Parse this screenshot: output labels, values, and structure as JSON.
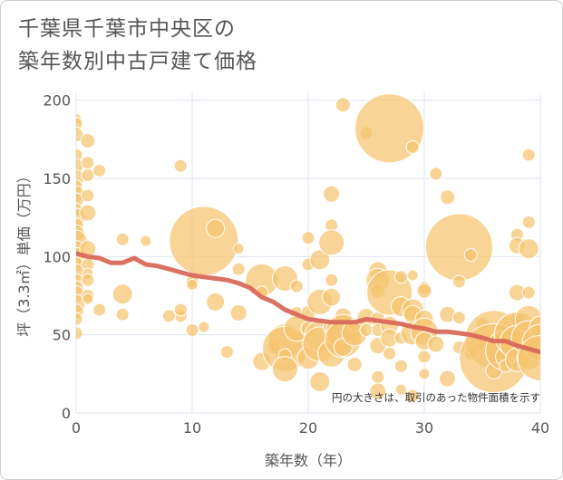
{
  "chart_data": {
    "type": "scatter",
    "title": [
      "千葉県千葉市中央区の",
      "築年数別中古戸建て価格"
    ],
    "xlabel": "築年数（年）",
    "ylabel": "坪（3.3㎡）単価（万円）",
    "xlim": [
      0,
      40
    ],
    "ylim": [
      0,
      205
    ],
    "xticks": [
      0,
      10,
      20,
      30,
      40
    ],
    "yticks": [
      0,
      50,
      100,
      150,
      200
    ],
    "annotation": "円の大きさは、取引のあった物件面積を示す",
    "colors": {
      "bubble_fill": "#f5c36e",
      "bubble_stroke": "#ffffff",
      "trend_line": "#d9695a",
      "grid": "#dde3ee",
      "axis_text": "#555555"
    },
    "trend": [
      [
        0,
        102
      ],
      [
        1,
        100
      ],
      [
        2,
        99
      ],
      [
        3,
        96
      ],
      [
        4,
        96
      ],
      [
        5,
        99
      ],
      [
        6,
        95
      ],
      [
        7,
        94
      ],
      [
        8,
        92
      ],
      [
        9,
        90
      ],
      [
        10,
        88
      ],
      [
        11,
        87
      ],
      [
        12,
        86
      ],
      [
        13,
        85
      ],
      [
        14,
        83
      ],
      [
        15,
        80
      ],
      [
        16,
        74
      ],
      [
        17,
        71
      ],
      [
        18,
        66
      ],
      [
        19,
        63
      ],
      [
        20,
        60
      ],
      [
        21,
        59
      ],
      [
        22,
        58
      ],
      [
        23,
        58
      ],
      [
        24,
        58
      ],
      [
        25,
        60
      ],
      [
        26,
        59
      ],
      [
        27,
        58
      ],
      [
        28,
        57
      ],
      [
        29,
        55
      ],
      [
        30,
        54
      ],
      [
        31,
        52
      ],
      [
        32,
        52
      ],
      [
        33,
        51
      ],
      [
        34,
        50
      ],
      [
        35,
        48
      ],
      [
        36,
        46
      ],
      [
        37,
        46
      ],
      [
        38,
        43
      ],
      [
        39,
        41
      ],
      [
        40,
        39
      ]
    ],
    "bubbles": [
      [
        0,
        188,
        6
      ],
      [
        0,
        185,
        7
      ],
      [
        0,
        178,
        8
      ],
      [
        0,
        165,
        7
      ],
      [
        0,
        158,
        8
      ],
      [
        0,
        150,
        9
      ],
      [
        0,
        145,
        7
      ],
      [
        0,
        140,
        9
      ],
      [
        0,
        136,
        8
      ],
      [
        0,
        130,
        7
      ],
      [
        0,
        125,
        10
      ],
      [
        0,
        120,
        8
      ],
      [
        0,
        115,
        9
      ],
      [
        0,
        110,
        12
      ],
      [
        0,
        105,
        9
      ],
      [
        0,
        100,
        10
      ],
      [
        0,
        95,
        8
      ],
      [
        0,
        90,
        9
      ],
      [
        0,
        85,
        7
      ],
      [
        0,
        80,
        8
      ],
      [
        0,
        76,
        9
      ],
      [
        0,
        70,
        10
      ],
      [
        0,
        65,
        8
      ],
      [
        0,
        60,
        7
      ],
      [
        0,
        51,
        7
      ],
      [
        1,
        174,
        8
      ],
      [
        1,
        160,
        7
      ],
      [
        1,
        152,
        7
      ],
      [
        1,
        139,
        7
      ],
      [
        1,
        128,
        9
      ],
      [
        1,
        105,
        9
      ],
      [
        1,
        95,
        7
      ],
      [
        1,
        89,
        6
      ],
      [
        1,
        85,
        7
      ],
      [
        1,
        75,
        7
      ],
      [
        1,
        73,
        6
      ],
      [
        2,
        155,
        7
      ],
      [
        2,
        66,
        7
      ],
      [
        4,
        111,
        7
      ],
      [
        4,
        76,
        11
      ],
      [
        4,
        63,
        7
      ],
      [
        6,
        110,
        6
      ],
      [
        9,
        158,
        7
      ],
      [
        9,
        62,
        7
      ],
      [
        9,
        66,
        7
      ],
      [
        8,
        62,
        7
      ],
      [
        10,
        84,
        7
      ],
      [
        10,
        82,
        6
      ],
      [
        10,
        53,
        7
      ],
      [
        11,
        110,
        38
      ],
      [
        11,
        55,
        6
      ],
      [
        12,
        118,
        10
      ],
      [
        12,
        71,
        10
      ],
      [
        14,
        92,
        7
      ],
      [
        14,
        64,
        9
      ],
      [
        14,
        105,
        6
      ],
      [
        13,
        39,
        7
      ],
      [
        16,
        85,
        18
      ],
      [
        16,
        77,
        7
      ],
      [
        16,
        33,
        10
      ],
      [
        17,
        42,
        7
      ],
      [
        18,
        86,
        14
      ],
      [
        18,
        46,
        19
      ],
      [
        18,
        41,
        25
      ],
      [
        18,
        37,
        7
      ],
      [
        18,
        28,
        14
      ],
      [
        19,
        81,
        7
      ],
      [
        19,
        64,
        7
      ],
      [
        19,
        54,
        14
      ],
      [
        20,
        112,
        7
      ],
      [
        20,
        95,
        7
      ],
      [
        20,
        64,
        8
      ],
      [
        20,
        54,
        8
      ],
      [
        20,
        35,
        12
      ],
      [
        21,
        98,
        11
      ],
      [
        21,
        71,
        14
      ],
      [
        21,
        49,
        17
      ],
      [
        21,
        44,
        19
      ],
      [
        21,
        20,
        11
      ],
      [
        22,
        140,
        9
      ],
      [
        22,
        120,
        7
      ],
      [
        22,
        109,
        14
      ],
      [
        22,
        85,
        7
      ],
      [
        22,
        74,
        10
      ],
      [
        22,
        55,
        9
      ],
      [
        22,
        46,
        7
      ],
      [
        22,
        38,
        15
      ],
      [
        23,
        197,
        8
      ],
      [
        23,
        62,
        9
      ],
      [
        23,
        52,
        19
      ],
      [
        23,
        47,
        20
      ],
      [
        23,
        42,
        10
      ],
      [
        24,
        56,
        7
      ],
      [
        24,
        51,
        14
      ],
      [
        24,
        31,
        8
      ],
      [
        25,
        179,
        7
      ],
      [
        25,
        61,
        10
      ],
      [
        25,
        53,
        7
      ],
      [
        26,
        91,
        10
      ],
      [
        26,
        85,
        13
      ],
      [
        26,
        78,
        8
      ],
      [
        26,
        60,
        8
      ],
      [
        26,
        53,
        7
      ],
      [
        26,
        43,
        9
      ],
      [
        26,
        23,
        7
      ],
      [
        26,
        14,
        9
      ],
      [
        27,
        182,
        38
      ],
      [
        27,
        77,
        25
      ],
      [
        27,
        56,
        10
      ],
      [
        27,
        48,
        10
      ],
      [
        27,
        38,
        7
      ],
      [
        28,
        87,
        7
      ],
      [
        28,
        68,
        11
      ],
      [
        28,
        48,
        7
      ],
      [
        28,
        30,
        7
      ],
      [
        28,
        15,
        6
      ],
      [
        29,
        170,
        7
      ],
      [
        29,
        88,
        6
      ],
      [
        29,
        66,
        12
      ],
      [
        29,
        63,
        10
      ],
      [
        29,
        51,
        13
      ],
      [
        29,
        11,
        7
      ],
      [
        30,
        80,
        7
      ],
      [
        30,
        78,
        8
      ],
      [
        30,
        60,
        10
      ],
      [
        30,
        52,
        15
      ],
      [
        30,
        46,
        10
      ],
      [
        30,
        36,
        7
      ],
      [
        30,
        25,
        6
      ],
      [
        31,
        153,
        7
      ],
      [
        31,
        44,
        9
      ],
      [
        32,
        138,
        8
      ],
      [
        32,
        63,
        9
      ],
      [
        32,
        22,
        9
      ],
      [
        33,
        106,
        37
      ],
      [
        33,
        61,
        7
      ],
      [
        33,
        84,
        7
      ],
      [
        33,
        42,
        7
      ],
      [
        34,
        101,
        7
      ],
      [
        34,
        38,
        7
      ],
      [
        35,
        57,
        7
      ],
      [
        35,
        44,
        7
      ],
      [
        36,
        47,
        32
      ],
      [
        36,
        35,
        38
      ],
      [
        36,
        27,
        9
      ],
      [
        37,
        40,
        22
      ],
      [
        37,
        36,
        11
      ],
      [
        37,
        30,
        7
      ],
      [
        38,
        114,
        7
      ],
      [
        38,
        107,
        9
      ],
      [
        38,
        77,
        9
      ],
      [
        38,
        60,
        8
      ],
      [
        38,
        50,
        25
      ],
      [
        38,
        45,
        19
      ],
      [
        38,
        34,
        13
      ],
      [
        39,
        165,
        7
      ],
      [
        39,
        122,
        7
      ],
      [
        39,
        105,
        11
      ],
      [
        39,
        77,
        7
      ],
      [
        39,
        60,
        15
      ],
      [
        39,
        48,
        19
      ],
      [
        39,
        35,
        13
      ],
      [
        40,
        55,
        12
      ],
      [
        40,
        45,
        20
      ],
      [
        40,
        35,
        25
      ]
    ]
  }
}
